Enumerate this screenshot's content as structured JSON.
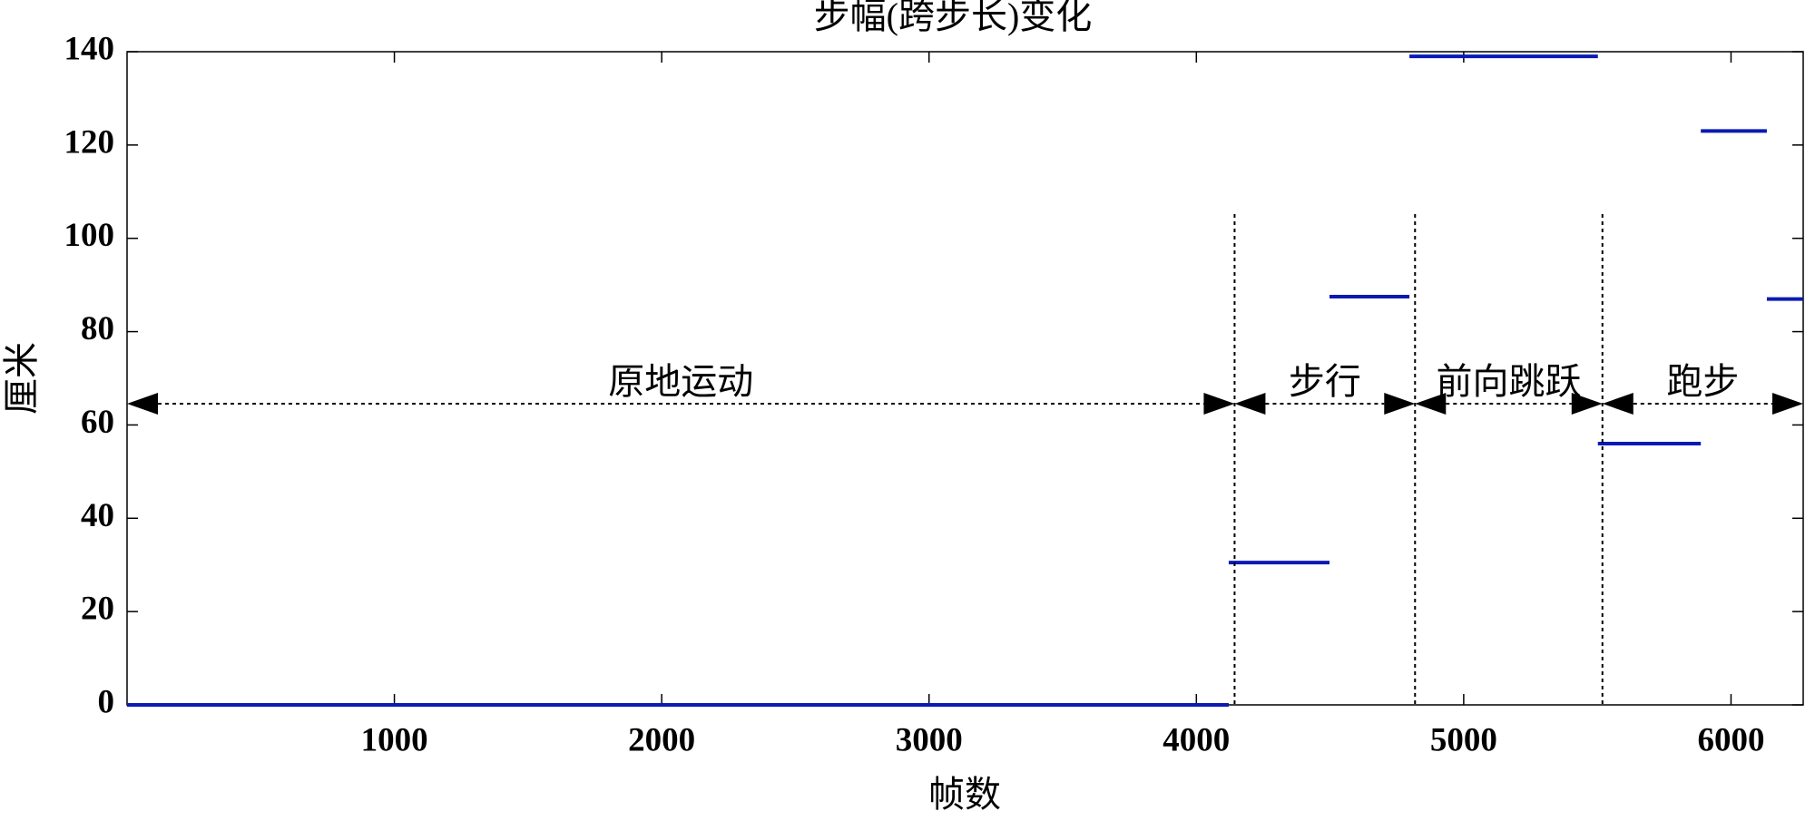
{
  "chart_data": {
    "type": "segments",
    "title": "步幅(跨步长)变化",
    "xlabel": "帧数",
    "ylabel": "厘米",
    "xlim": [
      0,
      6270
    ],
    "ylim": [
      0,
      140
    ],
    "xticks": [
      1000,
      2000,
      3000,
      4000,
      5000,
      6000
    ],
    "yticks": [
      0,
      20,
      40,
      60,
      80,
      100,
      120,
      140
    ],
    "color": "#0a1ab4",
    "segments": [
      {
        "x0": 0,
        "x1": 4121,
        "value": 0
      },
      {
        "x0": 4121,
        "x1": 4498,
        "value": 30.5
      },
      {
        "x0": 4498,
        "x1": 4797,
        "value": 87.5
      },
      {
        "x0": 4797,
        "x1": 5502,
        "value": 139
      },
      {
        "x0": 5502,
        "x1": 5887,
        "value": 56
      },
      {
        "x0": 5887,
        "x1": 6134,
        "value": 123
      },
      {
        "x0": 6134,
        "x1": 6270,
        "value": 87
      }
    ],
    "regions": [
      {
        "label": "原地运动",
        "start": 0,
        "end": 4143
      },
      {
        "label": "步行",
        "start": 4143,
        "end": 4818
      },
      {
        "label": "前向跳跃",
        "start": 4818,
        "end": 5519
      },
      {
        "label": "跑步",
        "start": 5519,
        "end": 6270
      }
    ]
  }
}
